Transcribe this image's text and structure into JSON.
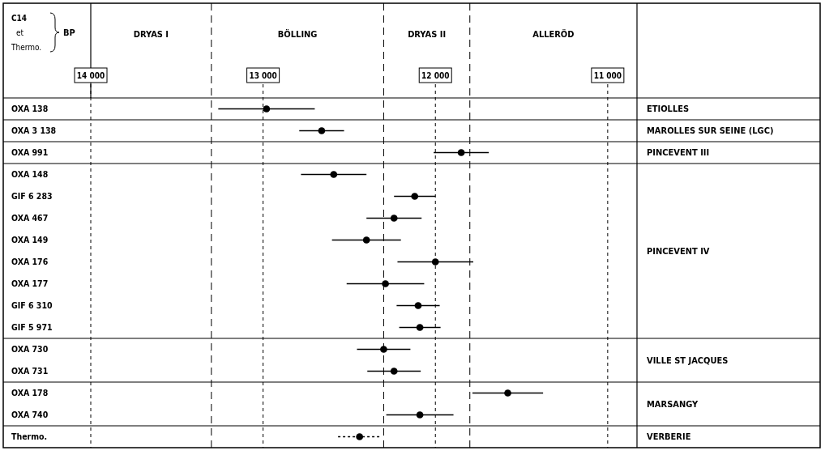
{
  "chart_data": {
    "type": "scatter",
    "orientation": "horizontal",
    "xlabel": "C14 et Thermo. BP",
    "categories": [
      "OXA 138",
      "OXA 3 138",
      "OXA 991",
      "OXA 148",
      "GIF 6 283",
      "OXA 467",
      "OXA 149",
      "OXA 176",
      "OXA 177",
      "GIF 6 310",
      "GIF 5 971",
      "OXA 730",
      "OXA 731",
      "OXA 178",
      "OXA 740",
      "Thermo."
    ],
    "series": [
      {
        "color": "#000000",
        "line_style": "solid",
        "values": [
          12980,
          12660,
          11850,
          12590,
          12120,
          12240,
          12400,
          12000,
          12290,
          12100,
          12090,
          12300,
          12240,
          11580,
          12090,
          null
        ],
        "errors": [
          280,
          130,
          160,
          190,
          120,
          160,
          200,
          220,
          225,
          125,
          120,
          155,
          155,
          205,
          195,
          null
        ]
      },
      {
        "color": "#000000",
        "line_style": "dashed",
        "values": [
          null,
          null,
          null,
          null,
          null,
          null,
          null,
          null,
          null,
          null,
          null,
          null,
          null,
          null,
          null,
          12440
        ],
        "errors": [
          null,
          null,
          null,
          null,
          null,
          null,
          null,
          null,
          null,
          null,
          null,
          null,
          null,
          null,
          null,
          125
        ]
      }
    ],
    "marker": "circle",
    "xlim": [
      14000,
      10830
    ],
    "xticks": [
      {
        "value": 14000,
        "label": "14 000"
      },
      {
        "value": 13000,
        "label": "13 000"
      },
      {
        "value": 12000,
        "label": "12 000"
      },
      {
        "value": 11000,
        "label": "11 000"
      }
    ],
    "grid": true,
    "ref_lines": [
      {
        "axis": "x",
        "value": 13300,
        "line_style": "dashed"
      },
      {
        "axis": "x",
        "value": 12300,
        "line_style": "dashed"
      },
      {
        "axis": "x",
        "value": 11800,
        "line_style": "dashed"
      }
    ],
    "annotations": [
      "DRYAS I",
      "BÖLLING",
      "DRYAS II",
      "ALLERÖD",
      "ETIOLLES",
      "MAROLLES SUR SEINE (LGC)",
      "PINCEVENT III",
      "PINCEVENT IV",
      "VILLE ST JACQUES",
      "MARSANGY",
      "VERBERIE"
    ]
  }
}
